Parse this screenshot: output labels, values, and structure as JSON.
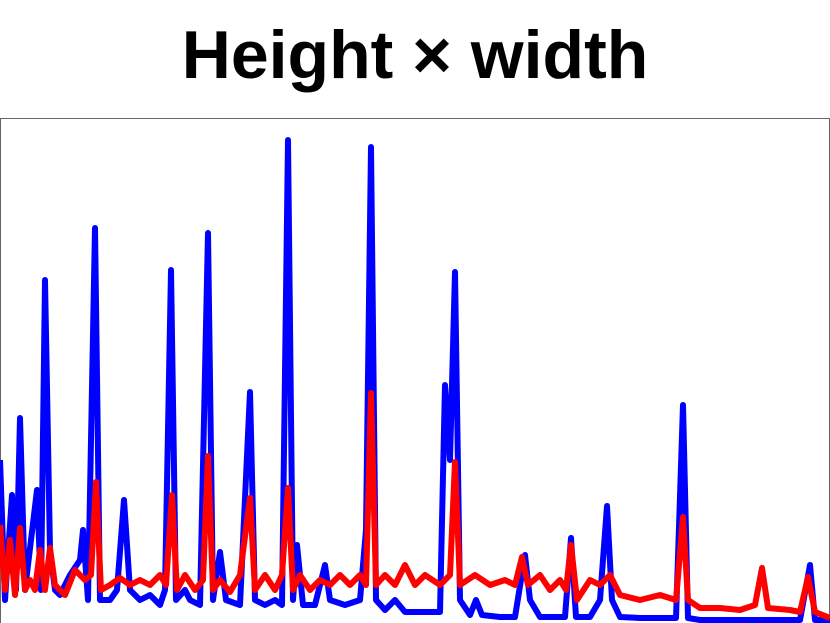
{
  "chart_data": {
    "type": "line",
    "title": "Height × width",
    "xlim": [
      0,
      830
    ],
    "ylim": [
      0,
      505
    ],
    "series": [
      {
        "color": "#0000ff",
        "x": [
          0,
          5,
          12,
          16,
          20,
          25,
          37,
          41,
          45,
          50,
          55,
          60,
          70,
          80,
          83,
          88,
          95,
          100,
          110,
          117,
          124,
          130,
          140,
          150,
          160,
          165,
          171,
          176,
          185,
          190,
          200,
          208,
          213,
          220,
          226,
          240,
          250,
          255,
          265,
          275,
          282,
          288,
          293,
          297,
          303,
          315,
          325,
          330,
          345,
          360,
          366,
          371,
          376,
          385,
          395,
          405,
          420,
          440,
          445,
          450,
          455,
          460,
          470,
          476,
          482,
          500,
          515,
          525,
          530,
          540,
          555,
          565,
          571,
          576,
          590,
          600,
          607,
          612,
          620,
          640,
          660,
          676,
          683,
          688,
          700,
          740,
          780,
          800,
          810,
          815,
          830
        ],
        "values": [
          163,
          23,
          128,
          33,
          205,
          33,
          133,
          33,
          343,
          73,
          33,
          28,
          48,
          63,
          93,
          23,
          395,
          23,
          23,
          33,
          123,
          33,
          23,
          28,
          18,
          33,
          353,
          23,
          33,
          23,
          18,
          390,
          23,
          71,
          23,
          18,
          231,
          23,
          18,
          23,
          18,
          483,
          23,
          78,
          18,
          18,
          58,
          23,
          18,
          23,
          93,
          476,
          23,
          13,
          23,
          11,
          11,
          11,
          238,
          163,
          351,
          23,
          8,
          23,
          8,
          6,
          6,
          68,
          23,
          6,
          6,
          6,
          85,
          6,
          6,
          23,
          117,
          23,
          6,
          5,
          5,
          5,
          218,
          5,
          3,
          3,
          3,
          3,
          58,
          3,
          3
        ]
      },
      {
        "color": "#ff0000",
        "x": [
          0,
          5,
          10,
          15,
          20,
          25,
          30,
          35,
          40,
          45,
          50,
          55,
          65,
          75,
          85,
          91,
          96,
          101,
          110,
          120,
          130,
          140,
          150,
          160,
          166,
          172,
          177,
          185,
          195,
          203,
          208,
          213,
          220,
          230,
          240,
          250,
          255,
          265,
          275,
          282,
          288,
          293,
          300,
          310,
          320,
          330,
          340,
          350,
          360,
          366,
          371,
          376,
          385,
          395,
          405,
          415,
          425,
          440,
          450,
          455,
          460,
          475,
          490,
          505,
          515,
          522,
          528,
          540,
          550,
          560,
          566,
          571,
          577,
          590,
          600,
          610,
          620,
          640,
          660,
          676,
          683,
          688,
          700,
          720,
          740,
          755,
          762,
          768,
          790,
          800,
          808,
          815,
          830
        ],
        "values": [
          98,
          33,
          83,
          28,
          95,
          33,
          43,
          33,
          73,
          33,
          75,
          38,
          28,
          53,
          43,
          48,
          141,
          33,
          38,
          45,
          38,
          43,
          38,
          48,
          38,
          128,
          33,
          48,
          33,
          43,
          167,
          33,
          43,
          31,
          48,
          125,
          33,
          48,
          33,
          48,
          135,
          33,
          48,
          33,
          43,
          38,
          48,
          38,
          48,
          38,
          230,
          38,
          48,
          38,
          58,
          38,
          48,
          38,
          48,
          161,
          38,
          48,
          38,
          43,
          38,
          66,
          38,
          48,
          33,
          43,
          33,
          78,
          23,
          43,
          38,
          48,
          28,
          23,
          28,
          23,
          106,
          23,
          15,
          15,
          13,
          18,
          55,
          15,
          13,
          11,
          46,
          11,
          5
        ]
      }
    ]
  }
}
